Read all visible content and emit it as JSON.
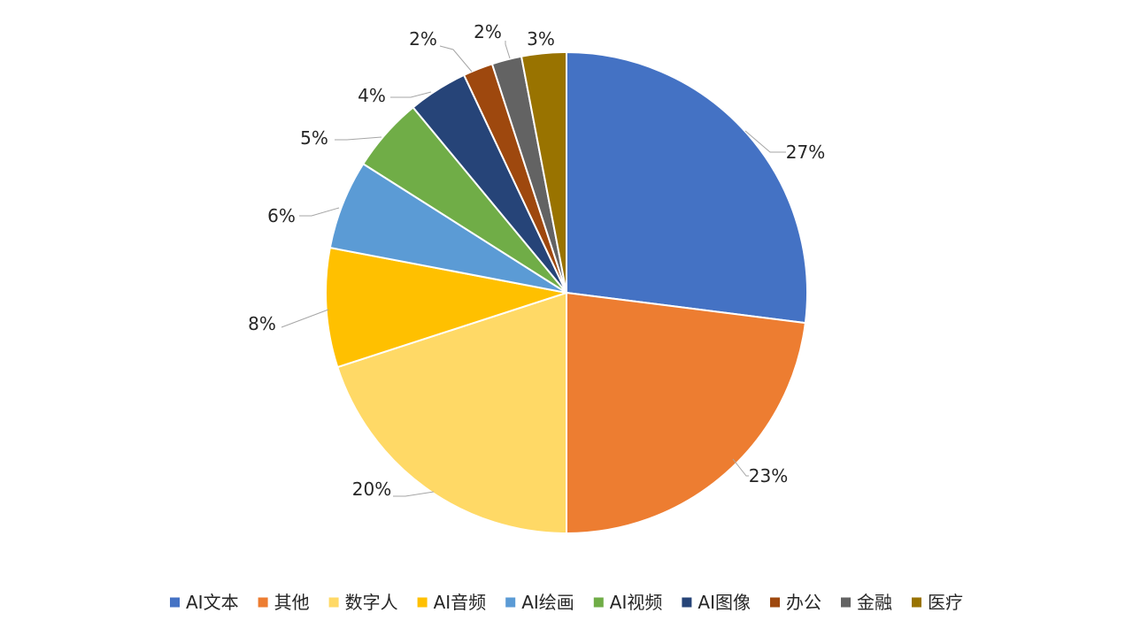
{
  "chart_data": {
    "type": "pie",
    "title": "",
    "slices": [
      {
        "label": "AI文本",
        "value": 27,
        "value_text": "27%",
        "color": "#4472C4"
      },
      {
        "label": "其他",
        "value": 23,
        "value_text": "23%",
        "color": "#ED7D31"
      },
      {
        "label": "数字人",
        "value": 20,
        "value_text": "20%",
        "color": "#FFD966"
      },
      {
        "label": "AI音频",
        "value": 8,
        "value_text": "8%",
        "color": "#FFC000"
      },
      {
        "label": "AI绘画",
        "value": 6,
        "value_text": "6%",
        "color": "#5B9BD5"
      },
      {
        "label": "AI视频",
        "value": 5,
        "value_text": "5%",
        "color": "#70AD47"
      },
      {
        "label": "AI图像",
        "value": 4,
        "value_text": "4%",
        "color": "#264478"
      },
      {
        "label": "办公",
        "value": 2,
        "value_text": "2%",
        "color": "#9E480E"
      },
      {
        "label": "金融",
        "value": 2,
        "value_text": "2%",
        "color": "#636363"
      },
      {
        "label": "医疗",
        "value": 3,
        "value_text": "3%",
        "color": "#997300"
      }
    ],
    "legend_position": "bottom",
    "start_angle": "12 o'clock",
    "direction": "clockwise",
    "data_labels": "outside-with-leader-lines"
  }
}
